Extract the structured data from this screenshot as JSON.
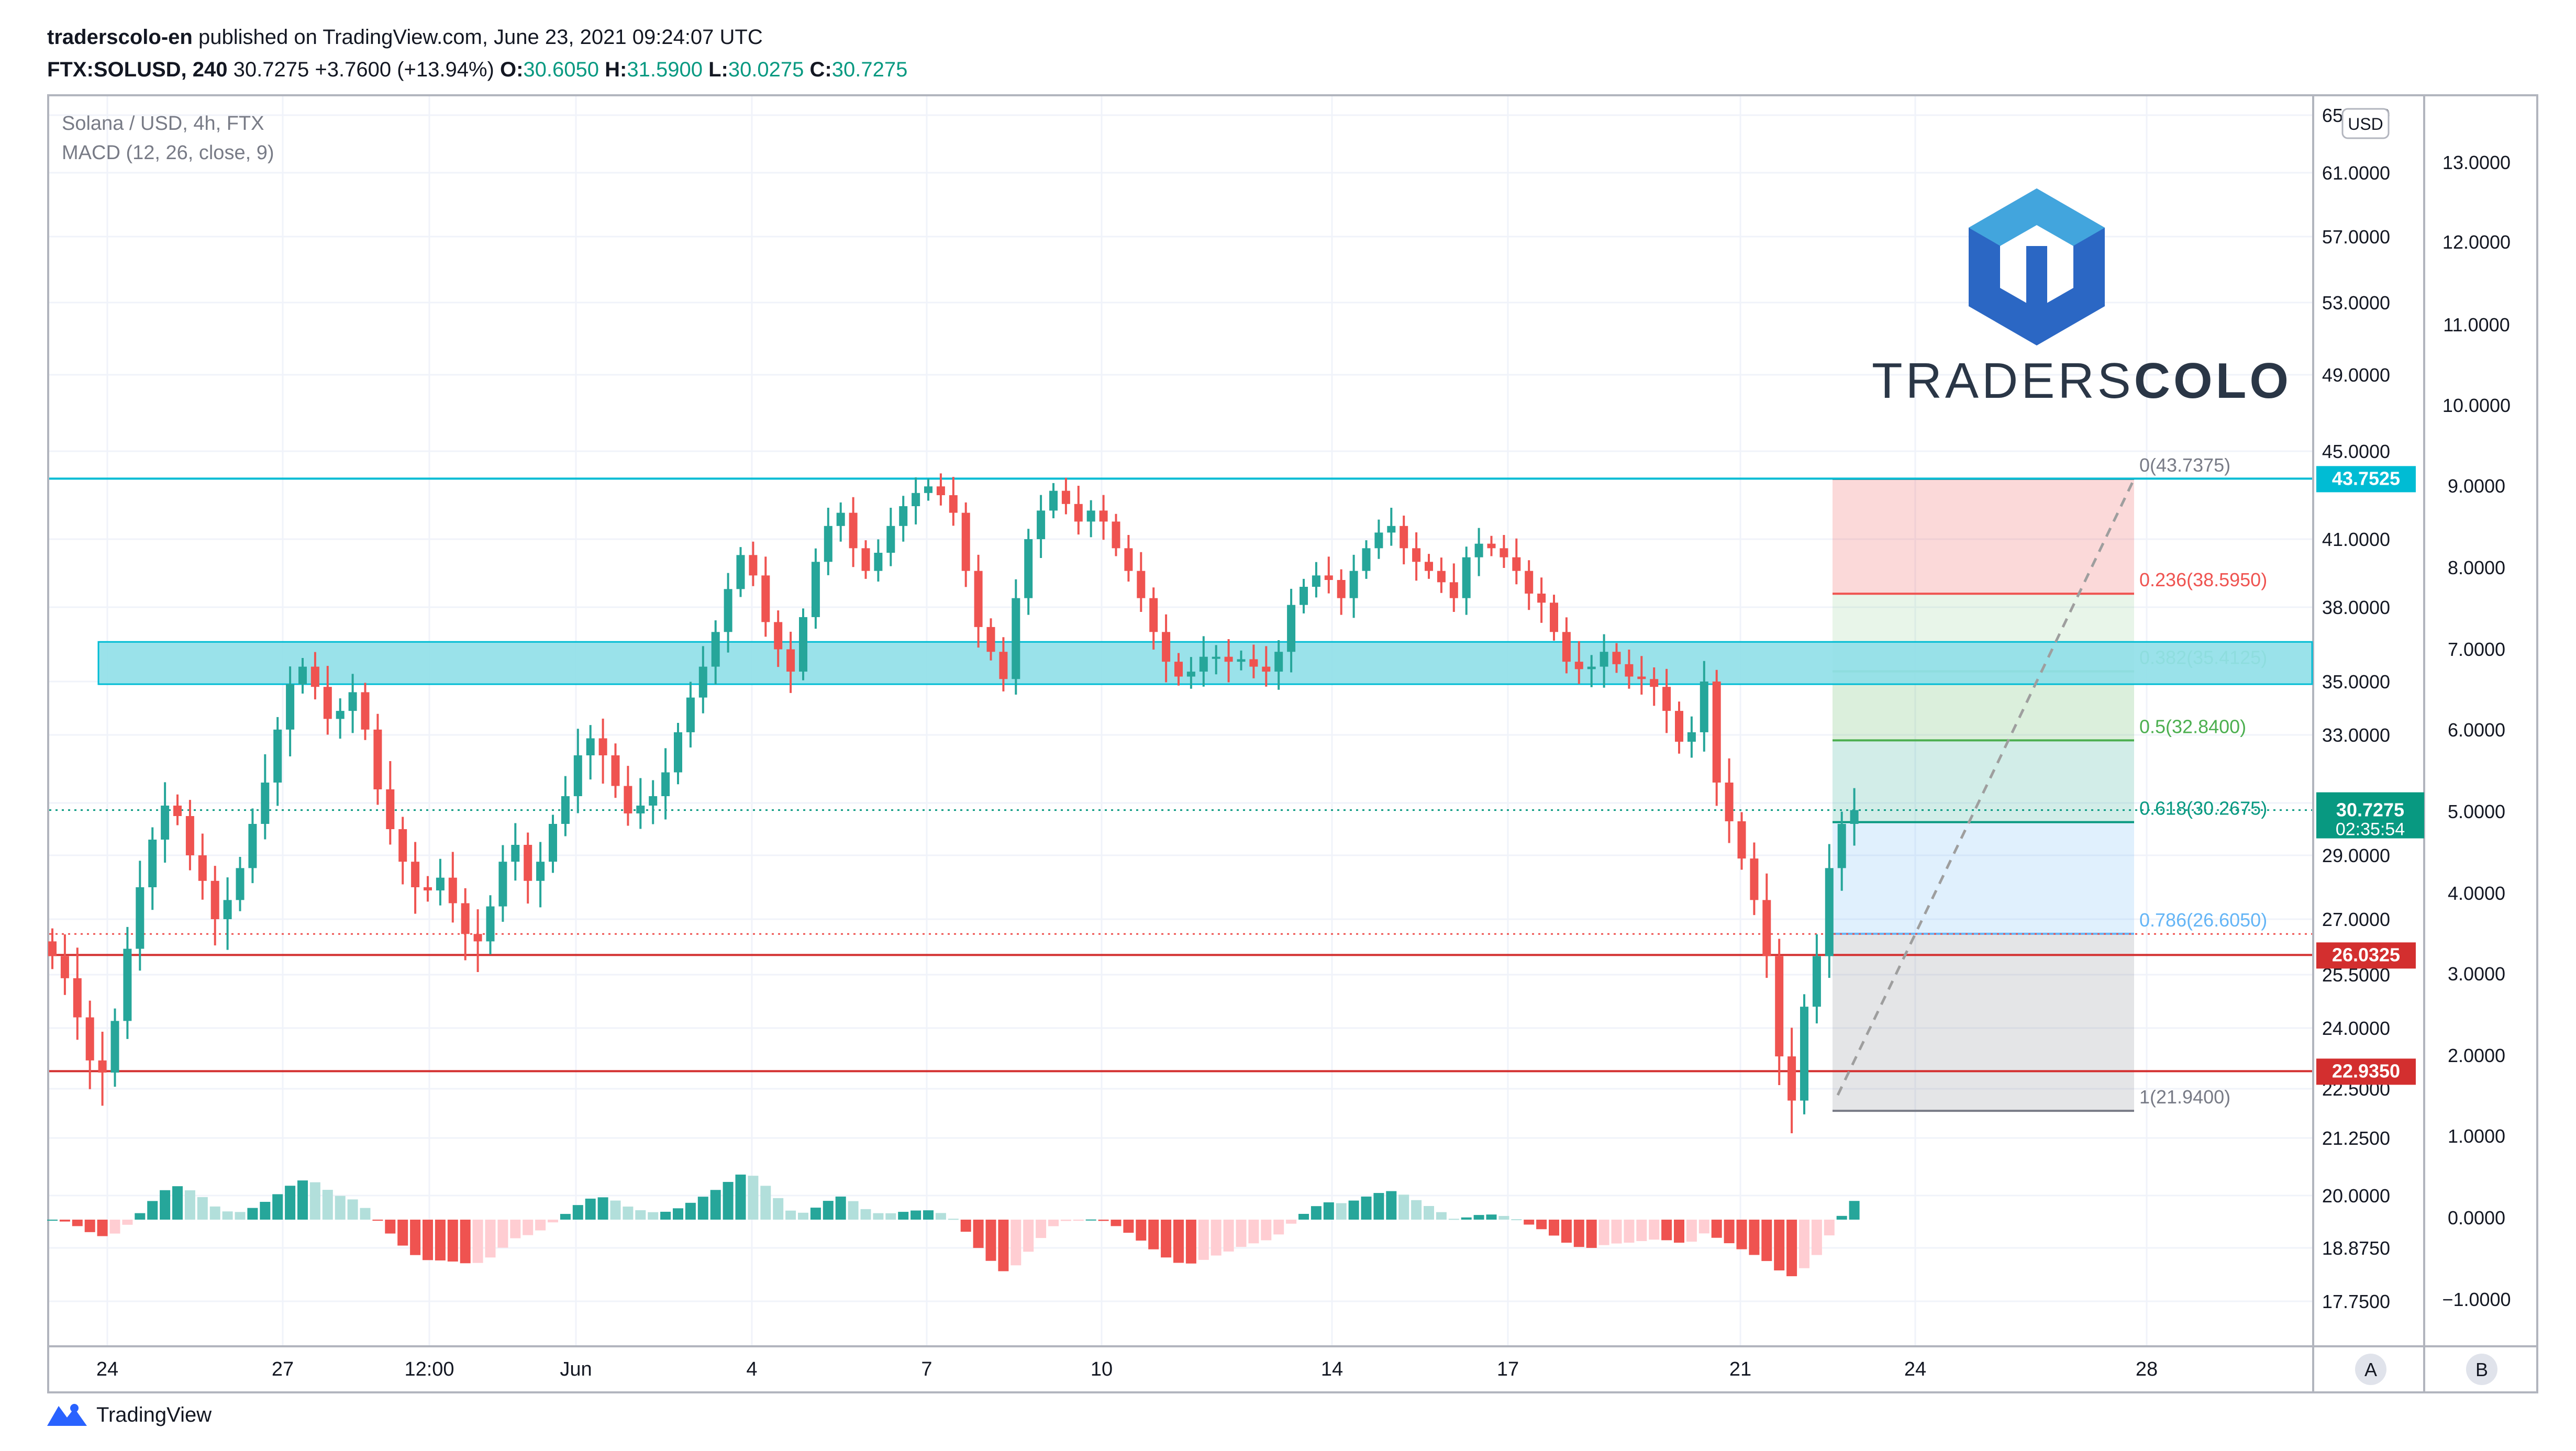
{
  "header": {
    "publisher": "traderscolo-en",
    "published_text": "published on TradingView.com, June 23, 2021 09:24:07 UTC",
    "symbol": "FTX:SOLUSD, 240",
    "last": "30.7275",
    "change": "+3.7600 (+13.94%)",
    "o_label": "O:",
    "o": "30.6050",
    "h_label": "H:",
    "h": "31.5900",
    "l_label": "L:",
    "l": "30.0275",
    "c_label": "C:",
    "c": "30.7275"
  },
  "legend": {
    "line1": "Solana / USD, 4h, FTX",
    "line2": "MACD (12, 26, close, 9)"
  },
  "watermark": {
    "text_light": "TRADERS",
    "text_bold": "COLO"
  },
  "footer": {
    "brand": "TradingView"
  },
  "buttons": {
    "currency": "USD",
    "a": "A",
    "b": "B"
  },
  "colors": {
    "up": "#26a69a",
    "down": "#ef5350",
    "hline_cyan": "#00bcd4",
    "hline_red": "#d32f2f",
    "zone": "#8fdfe8"
  },
  "chart_data": [
    {
      "type": "candlestick",
      "title": "Solana / USD, 4h, FTX",
      "x_ticks": [
        "24",
        "27",
        "12:00",
        "Jun",
        "4",
        "7",
        "10",
        "14",
        "17",
        "21",
        "24",
        "28"
      ],
      "price_ticks": [
        "65.0000",
        "61.0000",
        "57.0000",
        "53.0000",
        "49.0000",
        "45.0000",
        "41.0000",
        "38.0000",
        "35.0000",
        "33.0000",
        "31.0000",
        "29.0000",
        "27.0000",
        "25.5000",
        "24.0000",
        "22.5000",
        "21.2500",
        "20.0000",
        "18.8750",
        "17.7500"
      ],
      "close_series": [
        26,
        25.4,
        24.3,
        23.2,
        22.9,
        24.2,
        26.2,
        28.0,
        29.6,
        30.9,
        30.5,
        29.0,
        28.2,
        27.0,
        27.6,
        28.6,
        30.2,
        31.6,
        33.2,
        34.9,
        35.6,
        34.8,
        33.6,
        33.9,
        34.6,
        33.2,
        31.4,
        30.0,
        28.8,
        28.0,
        27.9,
        28.3,
        27.5,
        26.6,
        26.4,
        27.4,
        28.8,
        29.4,
        28.2,
        28.8,
        30.2,
        31.2,
        32.4,
        32.9,
        32.4,
        31.5,
        30.6,
        30.9,
        31.2,
        31.9,
        33.1,
        34.4,
        35.6,
        37.0,
        38.8,
        40.3,
        39.4,
        37.4,
        36.3,
        35.4,
        37.6,
        40.0,
        41.6,
        42.2,
        40.6,
        39.6,
        40.4,
        41.6,
        42.5,
        43.1,
        43.4,
        43.0,
        42.2,
        39.6,
        37.2,
        36.2,
        35.1,
        38.4,
        41.0,
        42.3,
        43.2,
        42.6,
        41.8,
        42.3,
        41.8,
        40.6,
        39.6,
        38.4,
        37.0,
        35.8,
        35.2,
        35.4,
        36.0,
        36.0,
        35.8,
        35.9,
        35.6,
        35.4,
        36.2,
        38.1,
        38.9,
        39.4,
        39.2,
        38.4,
        39.6,
        40.6,
        41.3,
        41.6,
        40.6,
        40.0,
        39.6,
        39.1,
        38.4,
        40.2,
        40.8,
        40.6,
        40.2,
        39.6,
        38.6,
        38.2,
        37.0,
        35.8,
        35.5,
        35.6,
        36.2,
        35.7,
        35.2,
        35.1,
        34.8,
        33.9,
        32.8,
        33.1,
        35.0,
        31.6,
        30.3,
        28.9,
        27.6,
        26.0,
        23.3,
        22.2,
        24.6,
        26.0,
        28.6,
        30.2,
        30.7275
      ],
      "last_price": 30.7275,
      "countdown": "02:35:54",
      "horizontal_lines": [
        {
          "label": "43.7525",
          "value": 43.7525,
          "color": "#00bcd4"
        },
        {
          "label": "26.0325",
          "value": 26.0325,
          "color": "#d32f2f"
        },
        {
          "label": "22.9350",
          "value": 22.935,
          "color": "#d32f2f"
        }
      ],
      "zone": {
        "from": 34.9,
        "to": 36.6
      },
      "fibonacci": [
        {
          "label": "0(43.7375)",
          "level": 0,
          "value": 43.7375,
          "color": "#787b86"
        },
        {
          "label": "0.236(38.5950)",
          "level": 0.236,
          "value": 38.595,
          "color": "#ef5350"
        },
        {
          "label": "0.382(35.4125)",
          "level": 0.382,
          "value": 35.4125,
          "color": "#81c784"
        },
        {
          "label": "0.5(32.8400)",
          "level": 0.5,
          "value": 32.84,
          "color": "#4caf50"
        },
        {
          "label": "0.618(30.2675)",
          "level": 0.618,
          "value": 30.2675,
          "color": "#089981"
        },
        {
          "label": "0.786(26.6050)",
          "level": 0.786,
          "value": 26.605,
          "color": "#64b5f6"
        },
        {
          "label": "1(21.9400)",
          "level": 1,
          "value": 21.94,
          "color": "#787b86"
        }
      ]
    },
    {
      "type": "bar",
      "title": "MACD (12, 26, close, 9)",
      "y_ticks": [
        "13.0000",
        "12.0000",
        "11.0000",
        "10.0000",
        "9.0000",
        "8.0000",
        "7.0000",
        "6.0000",
        "5.0000",
        "4.0000",
        "3.0000",
        "2.0000",
        "1.0000",
        "0.0000",
        "−1.0000"
      ],
      "ylim": [
        -1.4,
        13.6
      ]
    }
  ]
}
